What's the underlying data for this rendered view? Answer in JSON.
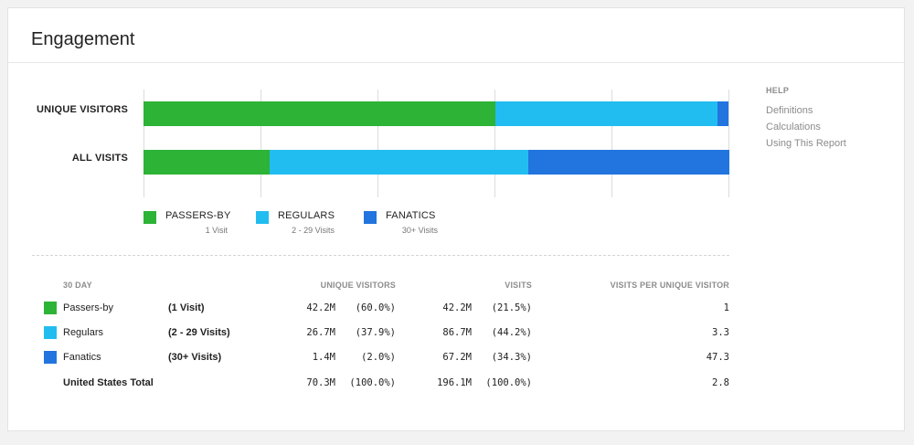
{
  "title": "Engagement",
  "help": {
    "title": "HELP",
    "links": [
      "Definitions",
      "Calculations",
      "Using This Report"
    ]
  },
  "colors": {
    "passers_by": "#2db336",
    "regulars": "#22bdf0",
    "fanatics": "#2274df"
  },
  "chart_data": {
    "type": "bar",
    "orientation": "horizontal",
    "stacked": "percent",
    "categories": [
      "UNIQUE VISITORS",
      "ALL VISITS"
    ],
    "series": [
      {
        "name": "PASSERS-BY",
        "sublabel": "1 Visit",
        "color": "#2db336",
        "values": [
          60.0,
          21.5
        ]
      },
      {
        "name": "REGULARS",
        "sublabel": "2 - 29 Visits",
        "color": "#22bdf0",
        "values": [
          37.9,
          44.2
        ]
      },
      {
        "name": "FANATICS",
        "sublabel": "30+ Visits",
        "color": "#2274df",
        "values": [
          2.0,
          34.3
        ]
      }
    ],
    "xlim": [
      0,
      100
    ],
    "grid": true,
    "legend": "bottom"
  },
  "table": {
    "period": "30 DAY",
    "headers": {
      "unique_visitors": "UNIQUE VISITORS",
      "visits": "VISITS",
      "ratio": "VISITS PER UNIQUE VISITOR"
    },
    "rows": [
      {
        "name": "Passers-by",
        "range": "(1 Visit)",
        "color": "#2db336",
        "uv": "42.2M",
        "uv_pct": "(60.0%)",
        "visits": "42.2M",
        "visits_pct": "(21.5%)",
        "ratio": "1"
      },
      {
        "name": "Regulars",
        "range": "(2 - 29 Visits)",
        "color": "#22bdf0",
        "uv": "26.7M",
        "uv_pct": "(37.9%)",
        "visits": "86.7M",
        "visits_pct": "(44.2%)",
        "ratio": "3.3"
      },
      {
        "name": "Fanatics",
        "range": "(30+ Visits)",
        "color": "#2274df",
        "uv": "1.4M",
        "uv_pct": "(2.0%)",
        "visits": "67.2M",
        "visits_pct": "(34.3%)",
        "ratio": "47.3"
      }
    ],
    "total": {
      "name": "United States Total",
      "uv": "70.3M",
      "uv_pct": "(100.0%)",
      "visits": "196.1M",
      "visits_pct": "(100.0%)",
      "ratio": "2.8"
    }
  }
}
